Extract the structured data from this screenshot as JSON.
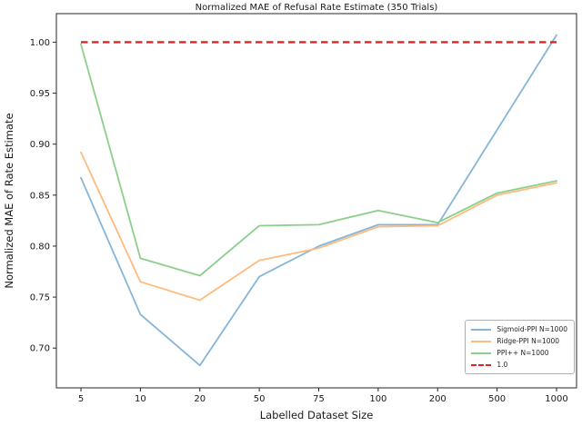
{
  "figure": {
    "title": "Normalized MAE of Refusal Rate Estimate (350 Trials)",
    "xlabel": "Labelled Dataset Size",
    "ylabel": "Normalized MAE of Rate Estimate"
  },
  "chart_data": {
    "type": "line",
    "title": "Normalized MAE of Refusal Rate Estimate (350 Trials)",
    "xlabel": "Labelled Dataset Size",
    "ylabel": "Normalized MAE of Rate Estimate",
    "x_scale": "categorical (log-like spacing)",
    "categories": [
      5,
      10,
      20,
      50,
      75,
      100,
      200,
      500,
      1000
    ],
    "x_tick_labels": [
      "5",
      "10",
      "20",
      "50",
      "75",
      "100",
      "200",
      "500",
      "1000"
    ],
    "y_ticks": [
      0.7,
      0.75,
      0.8,
      0.85,
      0.9,
      0.95,
      1.0
    ],
    "ylim": [
      0.661,
      1.028
    ],
    "grid": false,
    "legend_position": "lower right",
    "series": [
      {
        "name": "Sigmoid-PPI N=1000",
        "color": "#85b5d8",
        "style": "solid",
        "values": [
          0.867,
          0.733,
          0.683,
          0.77,
          0.8,
          0.821,
          0.821,
          0.914,
          1.007
        ]
      },
      {
        "name": "Ridge-PPI N=1000",
        "color": "#ffbb7e",
        "style": "solid",
        "values": [
          0.892,
          0.765,
          0.747,
          0.786,
          0.798,
          0.819,
          0.82,
          0.85,
          0.862
        ]
      },
      {
        "name": "PPI++ N=1000",
        "color": "#8ccf8c",
        "style": "solid",
        "values": [
          0.998,
          0.788,
          0.771,
          0.82,
          0.821,
          0.835,
          0.823,
          0.852,
          0.864
        ]
      },
      {
        "name": "1.0",
        "color": "#e02425",
        "style": "dashed",
        "values": [
          1.0,
          1.0,
          1.0,
          1.0,
          1.0,
          1.0,
          1.0,
          1.0,
          1.0
        ]
      }
    ]
  }
}
